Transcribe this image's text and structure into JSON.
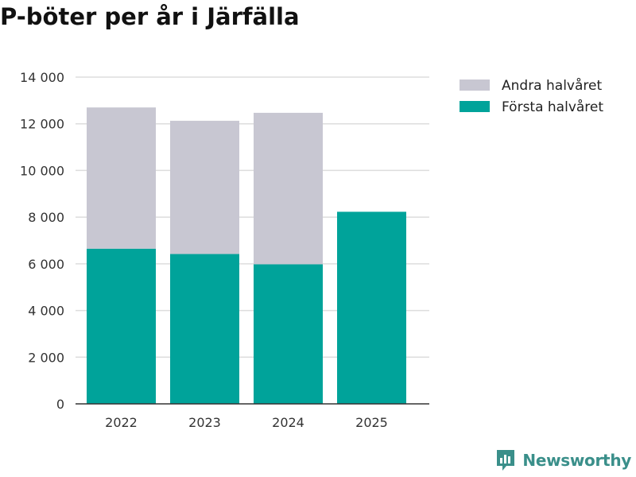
{
  "colors": {
    "first_half": "#00a39a",
    "second_half": "#c8c7d2",
    "grid": "#dddddd",
    "axis": "#333333",
    "brand": "#3a8f8a"
  },
  "brand": {
    "name": "Newsworthy",
    "icon": "newsworthy-logo-icon"
  },
  "chart_data": {
    "type": "bar",
    "stacked": true,
    "title": "P-böter per år i Järfälla",
    "xlabel": "",
    "ylabel": "",
    "categories": [
      "2022",
      "2023",
      "2024",
      "2025"
    ],
    "series": [
      {
        "name": "Första halvåret",
        "color_key": "first_half",
        "values": [
          6650,
          6420,
          5980,
          8230
        ]
      },
      {
        "name": "Andra halvåret",
        "color_key": "second_half",
        "values": [
          6050,
          5710,
          6490,
          0
        ]
      }
    ],
    "ylim": [
      0,
      14000
    ],
    "yticks": [
      0,
      2000,
      4000,
      6000,
      8000,
      10000,
      12000,
      14000
    ],
    "ytick_labels": [
      "0",
      "2 000",
      "4 000",
      "6 000",
      "8 000",
      "10 000",
      "12 000",
      "14 000"
    ],
    "legend": [
      {
        "label": "Andra halvåret",
        "color_key": "second_half"
      },
      {
        "label": "Första halvåret",
        "color_key": "first_half"
      }
    ],
    "legend_position": "top-right",
    "grid": true
  }
}
